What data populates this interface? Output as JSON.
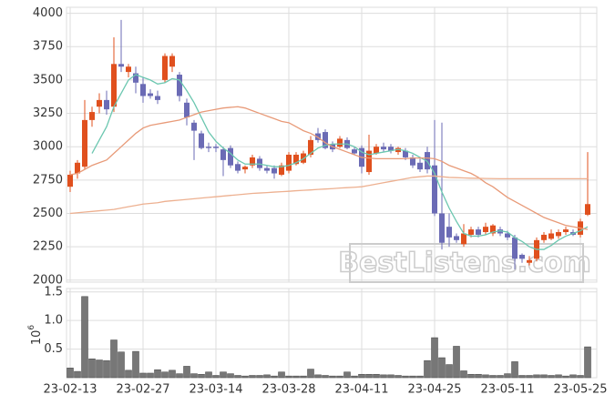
{
  "chart_data": [
    {
      "type": "candlestick",
      "categories": [
        "23-02-13",
        null,
        null,
        null,
        null,
        null,
        null,
        null,
        null,
        null,
        "23-02-27",
        null,
        null,
        null,
        null,
        null,
        null,
        null,
        null,
        null,
        "23-03-14",
        null,
        null,
        null,
        null,
        null,
        null,
        null,
        null,
        null,
        "23-03-28",
        null,
        null,
        null,
        null,
        null,
        null,
        null,
        null,
        null,
        "23-04-11",
        null,
        null,
        null,
        null,
        null,
        null,
        null,
        null,
        null,
        "23-04-25",
        null,
        null,
        null,
        null,
        null,
        null,
        null,
        null,
        null,
        "23-05-11",
        null,
        null,
        null,
        null,
        null,
        null,
        null,
        null,
        null,
        "23-05-25",
        null
      ],
      "open": [
        2700,
        2800,
        2850,
        3200,
        3300,
        3350,
        3300,
        3620,
        3560,
        3550,
        3470,
        3400,
        3380,
        3500,
        3600,
        3540,
        3330,
        3180,
        3100,
        3000,
        3000,
        2980,
        2990,
        2870,
        2830,
        2860,
        2910,
        2840,
        2840,
        2790,
        2820,
        2870,
        2880,
        2940,
        3100,
        3110,
        3020,
        3000,
        3050,
        2980,
        2990,
        2810,
        2950,
        3000,
        3000,
        2960,
        2970,
        2920,
        2880,
        2960,
        2860,
        2500,
        2400,
        2330,
        2270,
        2340,
        2380,
        2360,
        2350,
        2380,
        2350,
        2320,
        2190,
        2130,
        2160,
        2300,
        2310,
        2330,
        2360,
        2360,
        2340,
        2490
      ],
      "high": [
        2820,
        2900,
        3350,
        3300,
        3400,
        3420,
        3820,
        3950,
        3620,
        3600,
        3520,
        3430,
        3420,
        3700,
        3700,
        3560,
        3360,
        3200,
        3120,
        3030,
        3020,
        3000,
        3010,
        2890,
        2860,
        2940,
        2930,
        2860,
        2860,
        2880,
        2960,
        2960,
        2970,
        3080,
        3140,
        3130,
        3040,
        3080,
        3070,
        3000,
        3010,
        3090,
        3020,
        3030,
        3020,
        3000,
        2990,
        2940,
        2910,
        3000,
        3200,
        3180,
        2500,
        2350,
        2420,
        2400,
        2400,
        2430,
        2420,
        2400,
        2370,
        2340,
        2200,
        2180,
        2320,
        2360,
        2380,
        2380,
        2400,
        2380,
        2460,
        2960
      ],
      "low": [
        2660,
        2760,
        2830,
        3150,
        3250,
        3240,
        3260,
        3560,
        3520,
        3400,
        3330,
        3360,
        3320,
        3480,
        3560,
        3340,
        3160,
        2900,
        2980,
        2960,
        2960,
        2780,
        2840,
        2800,
        2800,
        2840,
        2820,
        2800,
        2760,
        2780,
        2800,
        2860,
        2870,
        2920,
        3030,
        2980,
        2960,
        2990,
        2980,
        2940,
        2800,
        2790,
        2940,
        2960,
        2950,
        2940,
        2900,
        2840,
        2810,
        2800,
        2480,
        2230,
        2250,
        2280,
        2250,
        2320,
        2320,
        2340,
        2330,
        2330,
        2300,
        2080,
        2130,
        2110,
        2140,
        2280,
        2300,
        2310,
        2340,
        2330,
        2320,
        2480
      ],
      "close": [
        2790,
        2880,
        3200,
        3260,
        3350,
        3280,
        3620,
        3600,
        3600,
        3480,
        3380,
        3380,
        3350,
        3680,
        3680,
        3380,
        3220,
        3120,
        2990,
        2990,
        2990,
        2900,
        2860,
        2820,
        2850,
        2920,
        2840,
        2820,
        2800,
        2860,
        2940,
        2940,
        2950,
        3050,
        3050,
        2990,
        2980,
        3060,
        2990,
        2950,
        2850,
        2970,
        3000,
        2980,
        2970,
        2990,
        2920,
        2860,
        2830,
        2830,
        2500,
        2280,
        2320,
        2300,
        2350,
        2380,
        2340,
        2400,
        2410,
        2350,
        2320,
        2160,
        2160,
        2150,
        2300,
        2340,
        2350,
        2360,
        2380,
        2340,
        2440,
        2570
      ],
      "up_color": "#e0501e",
      "down_color": "#6b6bb5",
      "series": [
        {
          "color": "#6cc7b0",
          "values": [
            null,
            null,
            null,
            2950,
            3050,
            3150,
            3300,
            3400,
            3500,
            3540,
            3520,
            3500,
            3470,
            3480,
            3510,
            3500,
            3420,
            3330,
            3220,
            3110,
            3040,
            2990,
            2950,
            2900,
            2870,
            2870,
            2870,
            2860,
            2850,
            2850,
            2860,
            2880,
            2910,
            2950,
            2990,
            3010,
            3020,
            3020,
            3020,
            3000,
            2960,
            2940,
            2950,
            2960,
            2970,
            2980,
            2970,
            2950,
            2920,
            2890,
            2800,
            2660,
            2540,
            2440,
            2350,
            2330,
            2330,
            2340,
            2360,
            2370,
            2360,
            2320,
            2290,
            2250,
            2230,
            2230,
            2260,
            2300,
            2330,
            2350,
            2370,
            2400
          ]
        },
        {
          "color": "#e89a78",
          "values": [
            2790,
            2800,
            2830,
            2860,
            2880,
            2900,
            2950,
            3000,
            3050,
            3100,
            3140,
            3160,
            3170,
            3180,
            3190,
            3200,
            3220,
            3240,
            3260,
            3270,
            3280,
            3290,
            3295,
            3300,
            3290,
            3270,
            3250,
            3230,
            3210,
            3190,
            3180,
            3150,
            3120,
            3100,
            3070,
            3030,
            3000,
            2980,
            2960,
            2940,
            2920,
            2915,
            2910,
            2910,
            2910,
            2910,
            2910,
            2915,
            2915,
            2915,
            2910,
            2890,
            2860,
            2840,
            2820,
            2800,
            2770,
            2730,
            2700,
            2660,
            2620,
            2590,
            2560,
            2530,
            2500,
            2470,
            2450,
            2430,
            2410,
            2400,
            2390,
            2380
          ]
        },
        {
          "color": "#edb090",
          "values": [
            2500,
            2505,
            2510,
            2515,
            2520,
            2525,
            2530,
            2540,
            2550,
            2560,
            2570,
            2575,
            2580,
            2590,
            2595,
            2600,
            2605,
            2610,
            2615,
            2620,
            2625,
            2630,
            2635,
            2640,
            2645,
            2650,
            2653,
            2656,
            2660,
            2663,
            2666,
            2670,
            2673,
            2676,
            2680,
            2683,
            2686,
            2690,
            2693,
            2696,
            2700,
            2710,
            2720,
            2730,
            2740,
            2750,
            2760,
            2770,
            2775,
            2780,
            2780,
            2775,
            2770,
            2768,
            2766,
            2764,
            2763,
            2762,
            2761,
            2760,
            2760,
            2760,
            2760,
            2760,
            2760,
            2760,
            2760,
            2760,
            2760,
            2760,
            2760,
            2760
          ]
        }
      ],
      "ylim": [
        1985,
        4045
      ],
      "yticks": [
        2000,
        2250,
        2500,
        2750,
        3000,
        3250,
        3500,
        3750,
        4000
      ],
      "grid": true,
      "watermark": "BestListens.com"
    },
    {
      "type": "bar",
      "values": [
        0.17,
        0.11,
        1.42,
        0.33,
        0.31,
        0.3,
        0.66,
        0.45,
        0.13,
        0.46,
        0.08,
        0.08,
        0.14,
        0.1,
        0.13,
        0.07,
        0.2,
        0.07,
        0.06,
        0.1,
        0.04,
        0.1,
        0.07,
        0.04,
        0.03,
        0.04,
        0.04,
        0.05,
        0.03,
        0.1,
        0.03,
        0.03,
        0.03,
        0.15,
        0.05,
        0.04,
        0.03,
        0.03,
        0.1,
        0.03,
        0.06,
        0.06,
        0.06,
        0.05,
        0.05,
        0.04,
        0.03,
        0.03,
        0.03,
        0.3,
        0.7,
        0.35,
        0.23,
        0.55,
        0.12,
        0.06,
        0.06,
        0.05,
        0.04,
        0.04,
        0.07,
        0.28,
        0.04,
        0.04,
        0.05,
        0.05,
        0.04,
        0.05,
        0.03,
        0.05,
        0.04,
        0.54
      ],
      "color": "#777777",
      "ylim": [
        0,
        1.56
      ],
      "yticks": [
        {
          "value": 0.5,
          "label": "0.5"
        },
        {
          "value": 1,
          "label": "1.0"
        },
        {
          "value": 1.5,
          "label": "1.5"
        }
      ],
      "grid": true,
      "y_label": "10",
      "y_label_exponent": "6"
    }
  ]
}
